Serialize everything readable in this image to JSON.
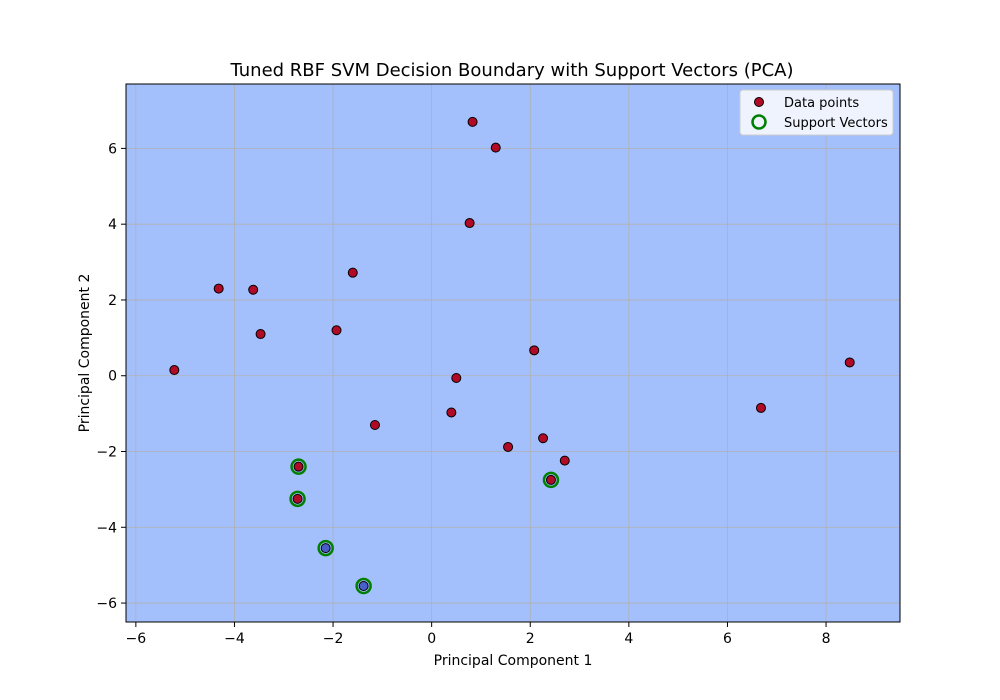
{
  "chart_data": {
    "type": "scatter",
    "title": "Tuned RBF SVM Decision Boundary with Support Vectors (PCA)",
    "xlabel": "Principal Component 1",
    "ylabel": "Principal Component 2",
    "xlim": [
      -6.2,
      9.5
    ],
    "ylim": [
      -6.5,
      7.7
    ],
    "xticks": [
      -6,
      -4,
      -2,
      0,
      2,
      4,
      6,
      8
    ],
    "yticks": [
      -6,
      -4,
      -2,
      0,
      2,
      4,
      6
    ],
    "grid": true,
    "legend_position": "top-right",
    "background_region_color": "#a4c0fc",
    "series": [
      {
        "name": "Data points",
        "marker": "circle",
        "points": [
          {
            "x": 0.83,
            "y": 6.7,
            "cls": "red"
          },
          {
            "x": 1.3,
            "y": 6.02,
            "cls": "red"
          },
          {
            "x": 0.77,
            "y": 4.03,
            "cls": "red"
          },
          {
            "x": -4.32,
            "y": 2.3,
            "cls": "red"
          },
          {
            "x": -3.62,
            "y": 2.27,
            "cls": "red"
          },
          {
            "x": -1.6,
            "y": 2.72,
            "cls": "red"
          },
          {
            "x": -3.47,
            "y": 1.1,
            "cls": "red"
          },
          {
            "x": -1.93,
            "y": 1.2,
            "cls": "red"
          },
          {
            "x": -5.22,
            "y": 0.15,
            "cls": "red"
          },
          {
            "x": 2.08,
            "y": 0.67,
            "cls": "red"
          },
          {
            "x": 0.5,
            "y": -0.06,
            "cls": "red"
          },
          {
            "x": 8.48,
            "y": 0.35,
            "cls": "red"
          },
          {
            "x": 6.68,
            "y": -0.85,
            "cls": "red"
          },
          {
            "x": 0.4,
            "y": -0.97,
            "cls": "red"
          },
          {
            "x": -1.15,
            "y": -1.3,
            "cls": "red"
          },
          {
            "x": 2.26,
            "y": -1.65,
            "cls": "red"
          },
          {
            "x": 1.55,
            "y": -1.88,
            "cls": "red"
          },
          {
            "x": 2.7,
            "y": -2.24,
            "cls": "red"
          },
          {
            "x": -2.7,
            "y": -2.4,
            "cls": "red"
          },
          {
            "x": 2.42,
            "y": -2.75,
            "cls": "red"
          },
          {
            "x": -2.72,
            "y": -3.25,
            "cls": "red"
          },
          {
            "x": -2.15,
            "y": -4.55,
            "cls": "blue"
          },
          {
            "x": -1.38,
            "y": -5.55,
            "cls": "blue"
          }
        ]
      },
      {
        "name": "Support Vectors",
        "marker": "hollow-circle",
        "color": "#008000",
        "points": [
          {
            "x": -2.7,
            "y": -2.4
          },
          {
            "x": -2.72,
            "y": -3.25
          },
          {
            "x": -2.15,
            "y": -4.55
          },
          {
            "x": -1.38,
            "y": -5.55
          },
          {
            "x": 2.42,
            "y": -2.75
          }
        ]
      }
    ],
    "class_colors": {
      "red": "#b00a26",
      "blue": "#4a5ec8"
    },
    "legend_box_color": "#eef3fd"
  }
}
